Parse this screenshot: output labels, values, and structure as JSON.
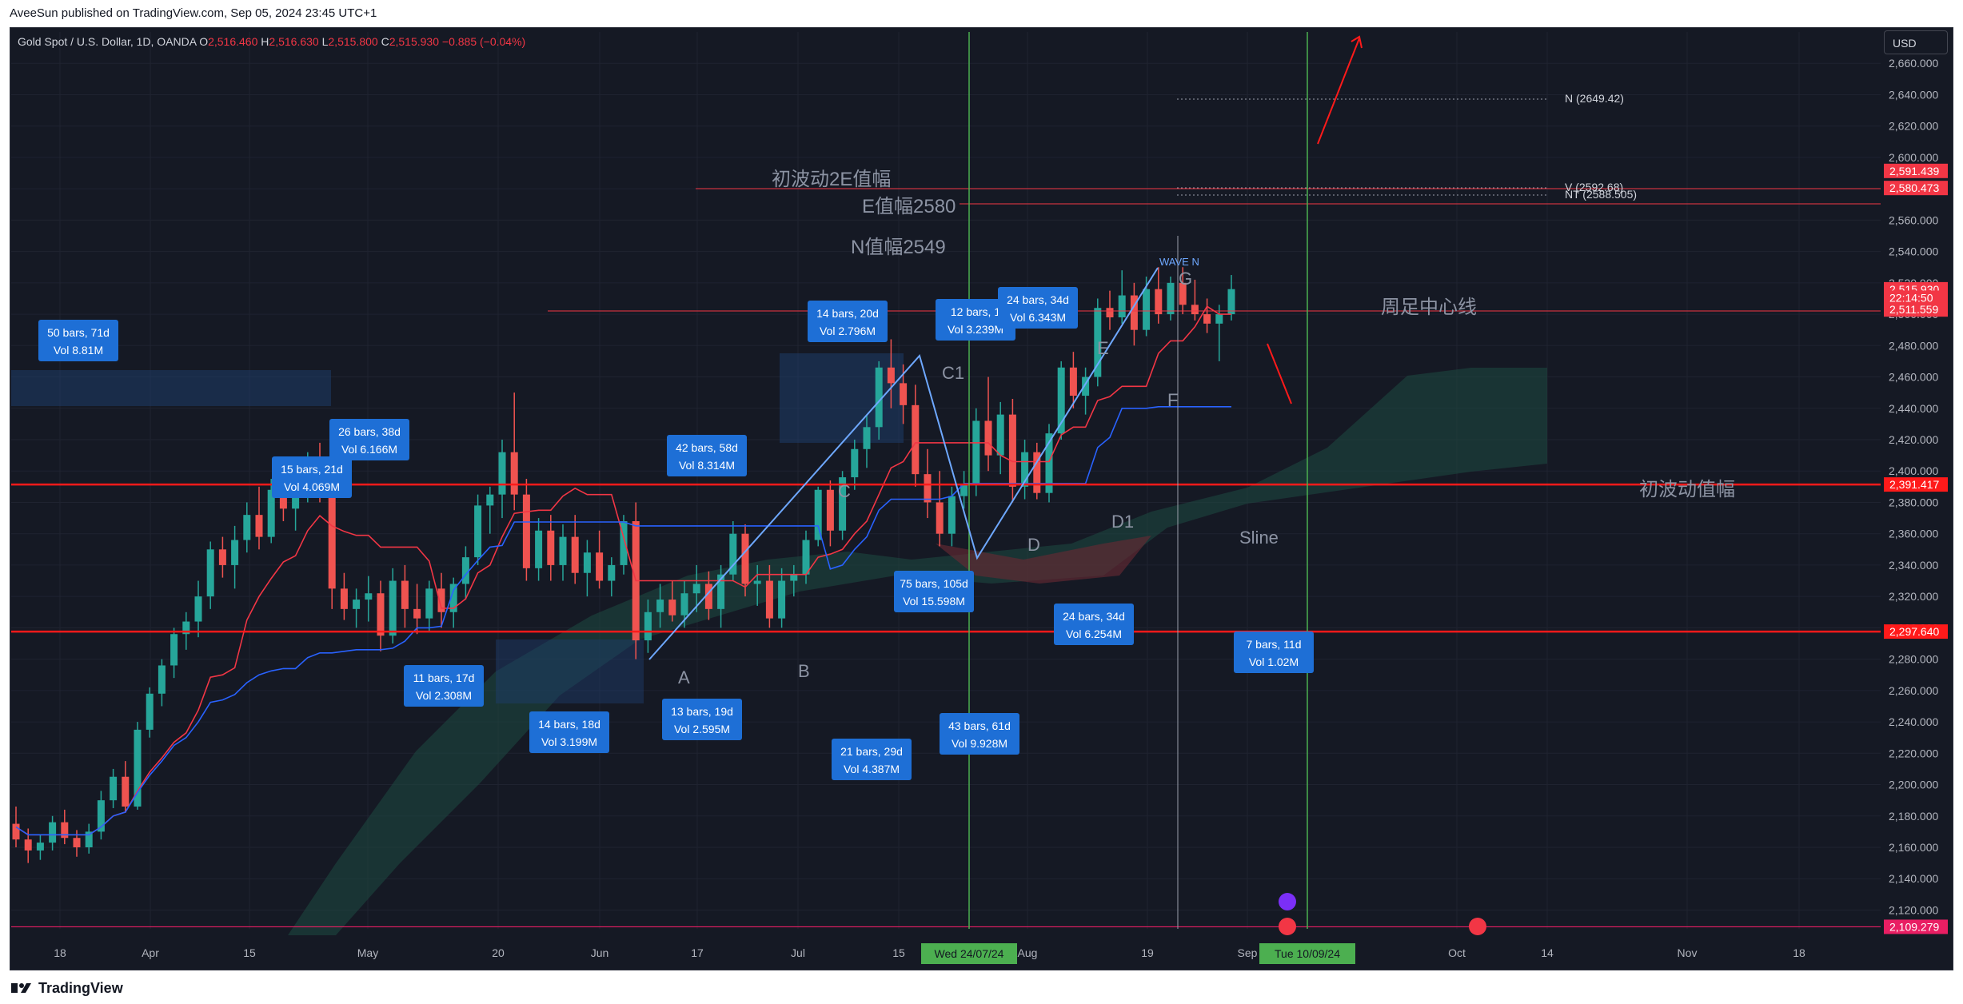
{
  "header": {
    "published": "AveeSun published on TradingView.com, Sep 05, 2024 23:45 UTC+1"
  },
  "legend": {
    "symbol": "Gold Spot / U.S. Dollar, 1D, OANDA",
    "open_label": "O",
    "open": "2,516.460",
    "high_label": "H",
    "high": "2,516.630",
    "low_label": "L",
    "low": "2,515.800",
    "close_label": "C",
    "close": "2,515.930",
    "change": "−0.885 (−0.04%)"
  },
  "currency": "USD",
  "footer": {
    "brand": "TradingView"
  },
  "colors": {
    "background": "#151924",
    "up": "#26a69a",
    "down": "#ef5350",
    "level_red": "#ff1a1a",
    "label_blue": "#1e6fd6",
    "kijun": "#2962ff",
    "tenkan": "#f23645",
    "vline_green": "#4caf50"
  },
  "chart_data": {
    "type": "candlestick",
    "title": "Gold Spot / U.S. Dollar, 1D, OANDA",
    "ylim": [
      2108,
      2680
    ],
    "price_ticks": [
      "2,660.000",
      "2,640.000",
      "2,620.000",
      "2,600.000",
      "2,580.000",
      "2,560.000",
      "2,540.000",
      "2,520.000",
      "2,500.000",
      "2,480.000",
      "2,460.000",
      "2,440.000",
      "2,420.000",
      "2,400.000",
      "2,380.000",
      "2,360.000",
      "2,340.000",
      "2,320.000",
      "2,300.000",
      "2,280.000",
      "2,260.000",
      "2,240.000",
      "2,220.000",
      "2,200.000",
      "2,180.000",
      "2,160.000",
      "2,140.000",
      "2,120.000"
    ],
    "date_ticks": [
      "18",
      "Apr",
      "15",
      "May",
      "20",
      "Jun",
      "17",
      "Jul",
      "15",
      "Aug",
      "19",
      "Sep",
      "Oct",
      "14",
      "Nov",
      "18"
    ],
    "date_highlights": [
      "Wed 24/07/24",
      "Tue 10/09/24"
    ],
    "price_badges": [
      {
        "label": "2,591.439",
        "price": 2591.4,
        "color": "#f23645"
      },
      {
        "label": "2,580.473",
        "price": 2580.5,
        "color": "#f23645"
      },
      {
        "label": "2,515.930",
        "price": 2515.9,
        "color": "#f23645"
      },
      {
        "label": "22:14:50",
        "price": 2510.5,
        "color": "#f23645"
      },
      {
        "label": "2,511.559",
        "price": 2503.0,
        "color": "#f23645"
      },
      {
        "label": "2,391.417",
        "price": 2391.4,
        "color": "#ff1a1a"
      },
      {
        "label": "2,297.640",
        "price": 2297.6,
        "color": "#ff1a1a"
      },
      {
        "label": "2,109.279",
        "price": 2109.3,
        "color": "#e91e63"
      }
    ],
    "horizontal_levels": [
      2391.4,
      2297.6,
      2109.3
    ],
    "series": [
      {
        "name": "candles",
        "ohlc": [
          [
            2175,
            2186,
            2160,
            2165
          ],
          [
            2165,
            2172,
            2150,
            2158
          ],
          [
            2158,
            2168,
            2152,
            2163
          ],
          [
            2163,
            2180,
            2158,
            2176
          ],
          [
            2176,
            2184,
            2162,
            2166
          ],
          [
            2166,
            2171,
            2154,
            2160
          ],
          [
            2160,
            2175,
            2156,
            2170
          ],
          [
            2170,
            2196,
            2165,
            2190
          ],
          [
            2190,
            2210,
            2185,
            2205
          ],
          [
            2205,
            2215,
            2182,
            2186
          ],
          [
            2186,
            2240,
            2184,
            2235
          ],
          [
            2235,
            2262,
            2230,
            2258
          ],
          [
            2258,
            2280,
            2250,
            2276
          ],
          [
            2276,
            2300,
            2268,
            2296
          ],
          [
            2296,
            2310,
            2286,
            2304
          ],
          [
            2304,
            2330,
            2294,
            2320
          ],
          [
            2320,
            2355,
            2312,
            2350
          ],
          [
            2350,
            2358,
            2332,
            2340
          ],
          [
            2340,
            2365,
            2325,
            2356
          ],
          [
            2356,
            2380,
            2348,
            2372
          ],
          [
            2372,
            2390,
            2350,
            2358
          ],
          [
            2358,
            2395,
            2354,
            2388
          ],
          [
            2388,
            2398,
            2368,
            2376
          ],
          [
            2376,
            2394,
            2362,
            2388
          ],
          [
            2388,
            2412,
            2380,
            2404
          ],
          [
            2404,
            2418,
            2380,
            2386
          ],
          [
            2386,
            2400,
            2312,
            2325
          ],
          [
            2325,
            2335,
            2305,
            2312
          ],
          [
            2312,
            2325,
            2300,
            2318
          ],
          [
            2318,
            2333,
            2304,
            2322
          ],
          [
            2322,
            2330,
            2285,
            2295
          ],
          [
            2295,
            2338,
            2290,
            2330
          ],
          [
            2330,
            2340,
            2300,
            2312
          ],
          [
            2312,
            2328,
            2296,
            2306
          ],
          [
            2306,
            2330,
            2298,
            2325
          ],
          [
            2325,
            2335,
            2300,
            2310
          ],
          [
            2310,
            2332,
            2300,
            2328
          ],
          [
            2328,
            2352,
            2318,
            2345
          ],
          [
            2345,
            2385,
            2340,
            2378
          ],
          [
            2378,
            2390,
            2360,
            2385
          ],
          [
            2385,
            2420,
            2370,
            2412
          ],
          [
            2412,
            2450,
            2375,
            2385
          ],
          [
            2385,
            2395,
            2330,
            2338
          ],
          [
            2338,
            2370,
            2330,
            2362
          ],
          [
            2362,
            2372,
            2330,
            2340
          ],
          [
            2340,
            2366,
            2330,
            2358
          ],
          [
            2358,
            2372,
            2328,
            2335
          ],
          [
            2335,
            2356,
            2320,
            2348
          ],
          [
            2348,
            2362,
            2325,
            2330
          ],
          [
            2330,
            2345,
            2320,
            2340
          ],
          [
            2340,
            2372,
            2334,
            2368
          ],
          [
            2368,
            2380,
            2280,
            2292
          ],
          [
            2292,
            2318,
            2284,
            2310
          ],
          [
            2310,
            2328,
            2300,
            2318
          ],
          [
            2318,
            2330,
            2304,
            2308
          ],
          [
            2308,
            2330,
            2300,
            2322
          ],
          [
            2322,
            2340,
            2310,
            2328
          ],
          [
            2328,
            2336,
            2305,
            2312
          ],
          [
            2312,
            2340,
            2300,
            2334
          ],
          [
            2334,
            2368,
            2330,
            2360
          ],
          [
            2360,
            2366,
            2320,
            2328
          ],
          [
            2328,
            2340,
            2314,
            2330
          ],
          [
            2330,
            2340,
            2300,
            2306
          ],
          [
            2306,
            2338,
            2300,
            2330
          ],
          [
            2330,
            2340,
            2320,
            2334
          ],
          [
            2334,
            2362,
            2328,
            2356
          ],
          [
            2356,
            2390,
            2352,
            2388
          ],
          [
            2388,
            2394,
            2352,
            2362
          ],
          [
            2362,
            2400,
            2356,
            2396
          ],
          [
            2396,
            2420,
            2388,
            2414
          ],
          [
            2414,
            2436,
            2402,
            2428
          ],
          [
            2428,
            2470,
            2420,
            2466
          ],
          [
            2466,
            2484,
            2440,
            2456
          ],
          [
            2456,
            2468,
            2430,
            2442
          ],
          [
            2442,
            2455,
            2390,
            2398
          ],
          [
            2398,
            2414,
            2370,
            2380
          ],
          [
            2380,
            2400,
            2352,
            2360
          ],
          [
            2360,
            2390,
            2352,
            2384
          ],
          [
            2384,
            2400,
            2376,
            2392
          ],
          [
            2392,
            2440,
            2384,
            2432
          ],
          [
            2432,
            2460,
            2400,
            2410
          ],
          [
            2410,
            2444,
            2398,
            2436
          ],
          [
            2436,
            2446,
            2380,
            2390
          ],
          [
            2390,
            2420,
            2382,
            2412
          ],
          [
            2412,
            2418,
            2382,
            2386
          ],
          [
            2386,
            2430,
            2380,
            2424
          ],
          [
            2424,
            2470,
            2420,
            2466
          ],
          [
            2466,
            2476,
            2440,
            2448
          ],
          [
            2448,
            2466,
            2436,
            2460
          ],
          [
            2460,
            2510,
            2454,
            2504
          ],
          [
            2504,
            2515,
            2490,
            2498
          ],
          [
            2498,
            2528,
            2494,
            2512
          ],
          [
            2512,
            2520,
            2480,
            2490
          ],
          [
            2490,
            2524,
            2486,
            2516
          ],
          [
            2516,
            2530,
            2494,
            2500
          ],
          [
            2500,
            2524,
            2496,
            2520
          ],
          [
            2520,
            2530,
            2500,
            2506
          ],
          [
            2506,
            2522,
            2496,
            2500
          ],
          [
            2500,
            2510,
            2488,
            2494
          ],
          [
            2494,
            2506,
            2470,
            2500
          ],
          [
            2500,
            2525,
            2496,
            2516
          ]
        ]
      },
      {
        "name": "tenkan",
        "color": "#f23645"
      },
      {
        "name": "kijun",
        "color": "#2962ff"
      }
    ],
    "annotations": {
      "range_boxes": [
        {
          "bars": "50 bars, 71d",
          "vol": "Vol 8.81M"
        },
        {
          "bars": "26 bars, 38d",
          "vol": "Vol 6.166M"
        },
        {
          "bars": "15 bars, 21d",
          "vol": "Vol 4.069M"
        },
        {
          "bars": "11 bars, 17d",
          "vol": "Vol 2.308M"
        },
        {
          "bars": "14 bars, 18d",
          "vol": "Vol 3.199M"
        },
        {
          "bars": "42 bars, 58d",
          "vol": "Vol 8.314M"
        },
        {
          "bars": "13 bars, 19d",
          "vol": "Vol 2.595M"
        },
        {
          "bars": "21 bars, 29d",
          "vol": "Vol 4.387M"
        },
        {
          "bars": "14 bars, 20d",
          "vol": "Vol 2.796M"
        },
        {
          "bars": "12 bars, 1",
          "vol": "Vol 3.239M"
        },
        {
          "bars": "24 bars, 34d",
          "vol": "Vol 6.343M"
        },
        {
          "bars": "75 bars, 105d",
          "vol": "Vol 15.598M"
        },
        {
          "bars": "43 bars, 61d",
          "vol": "Vol 9.928M"
        },
        {
          "bars": "24 bars, 34d",
          "vol": "Vol 6.254M"
        },
        {
          "bars": "7 bars, 11d",
          "vol": "Vol 1.02M"
        }
      ],
      "wave_labels": [
        "A",
        "B",
        "C",
        "C1",
        "D",
        "D1",
        "E",
        "F",
        "G",
        "WAVE N"
      ],
      "texts": [
        "初波动2E值幅",
        "E值幅2580",
        "N值幅2549",
        "周足中心线",
        "初波动值幅",
        "Sline"
      ],
      "targets": [
        {
          "label": "N (2649.42)"
        },
        {
          "label": "V (2592.68)"
        },
        {
          "label": "NT (2588.505)"
        }
      ]
    }
  }
}
